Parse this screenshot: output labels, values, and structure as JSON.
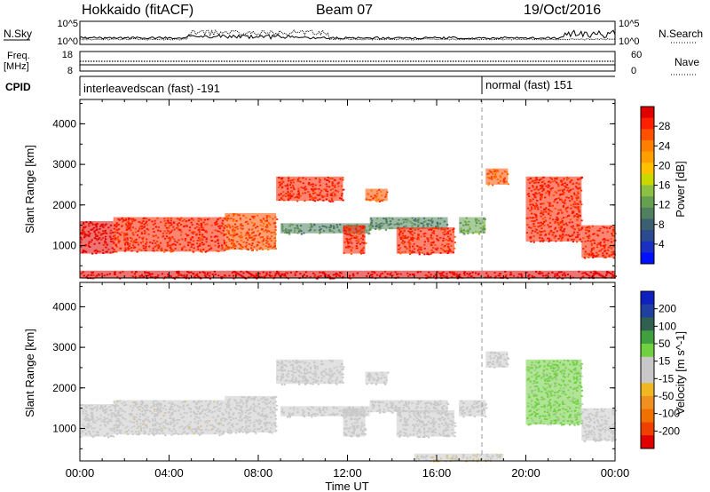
{
  "header": {
    "station": "Hokkaido (fitACF)",
    "beam": "Beam 07",
    "date": "19/Oct/2016"
  },
  "top_panels": {
    "nsky_label": "N.Sky",
    "nsky_ticks": [
      "10^5",
      "10^0"
    ],
    "nsearch_label": "N.Search",
    "nsearch_ticks": [
      "10^5",
      "10^0"
    ],
    "freq_label": "Freq.",
    "freq_unit": "[MHz]",
    "freq_ticks": [
      "18",
      "8"
    ],
    "nave_label": "Nave",
    "nave_ticks": [
      "60",
      "0"
    ],
    "cpid_label": "CPID",
    "cpid_modes": [
      {
        "text": "interleavedscan (fast) -191",
        "start_hour": 0
      },
      {
        "text": "normal (fast) 151",
        "start_hour": 18
      }
    ]
  },
  "colorbars": {
    "power": {
      "label": "Power [dB]",
      "ticks": [
        "28",
        "24",
        "20",
        "16",
        "12",
        "8",
        "4"
      ],
      "colors": [
        "#e00000",
        "#ff2000",
        "#ff5000",
        "#ff8000",
        "#ffa000",
        "#ffc000",
        "#c8d800",
        "#8cc040",
        "#64a050",
        "#508060",
        "#3c6070",
        "#2c4a90",
        "#1a30c0",
        "#0010ff"
      ]
    },
    "velocity": {
      "label": "Velocity [m s^-1]",
      "ticks": [
        "200",
        "100",
        "50",
        "15",
        "-15",
        "-50",
        "-100",
        "-200"
      ],
      "colors": [
        "#1020c0",
        "#2040a0",
        "#306050",
        "#40a040",
        "#70d040",
        "#c8c8c8",
        "#c8c8c8",
        "#f0b820",
        "#f09020",
        "#f07000",
        "#f04000",
        "#e00000"
      ]
    }
  },
  "chart_data": [
    {
      "type": "heatmap",
      "title": "Power",
      "ylabel": "Slant Range [km]",
      "y_ticks": [
        "4000",
        "3000",
        "2000",
        "1000"
      ],
      "ylim": [
        200,
        4600
      ],
      "xlim": [
        0,
        24
      ],
      "regions": [
        {
          "x0": 0.0,
          "x1": 1.5,
          "y0": 800,
          "y1": 1600,
          "value": 28
        },
        {
          "x0": 1.5,
          "x1": 6.5,
          "y0": 850,
          "y1": 1700,
          "value": 26
        },
        {
          "x0": 6.5,
          "x1": 8.8,
          "y0": 900,
          "y1": 1800,
          "value": 25
        },
        {
          "x0": 8.8,
          "x1": 11.8,
          "y0": 2100,
          "y1": 2700,
          "value": 26
        },
        {
          "x0": 9.0,
          "x1": 13.0,
          "y0": 1300,
          "y1": 1550,
          "value": 12
        },
        {
          "x0": 11.8,
          "x1": 12.8,
          "y0": 800,
          "y1": 1500,
          "value": 26
        },
        {
          "x0": 12.8,
          "x1": 13.8,
          "y0": 2100,
          "y1": 2400,
          "value": 24
        },
        {
          "x0": 13.0,
          "x1": 16.5,
          "y0": 1400,
          "y1": 1700,
          "value": 12
        },
        {
          "x0": 14.2,
          "x1": 16.8,
          "y0": 800,
          "y1": 1450,
          "value": 26
        },
        {
          "x0": 17.0,
          "x1": 18.2,
          "y0": 1300,
          "y1": 1700,
          "value": 14
        },
        {
          "x0": 18.2,
          "x1": 19.2,
          "y0": 2500,
          "y1": 2900,
          "value": 24
        },
        {
          "x0": 20.0,
          "x1": 22.5,
          "y0": 1100,
          "y1": 2700,
          "value": 26
        },
        {
          "x0": 22.5,
          "x1": 24.0,
          "y0": 700,
          "y1": 1500,
          "value": 26
        },
        {
          "x0": 0.0,
          "x1": 24.0,
          "y0": 200,
          "y1": 380,
          "value": 28
        }
      ]
    },
    {
      "type": "heatmap",
      "title": "Velocity",
      "ylabel": "Slant Range [km]",
      "xlabel": "Time UT",
      "x_ticks": [
        "00:00",
        "04:00",
        "08:00",
        "12:00",
        "16:00",
        "20:00",
        "00:00"
      ],
      "y_ticks": [
        "4000",
        "3000",
        "2000",
        "1000"
      ],
      "ylim": [
        200,
        4600
      ],
      "xlim": [
        0,
        24
      ],
      "regions": [
        {
          "x0": 0.0,
          "x1": 1.5,
          "y0": 800,
          "y1": 1600,
          "value": 0
        },
        {
          "x0": 1.5,
          "x1": 6.5,
          "y0": 850,
          "y1": 1700,
          "value": -30
        },
        {
          "x0": 6.5,
          "x1": 8.8,
          "y0": 900,
          "y1": 1800,
          "value": -20
        },
        {
          "x0": 8.8,
          "x1": 11.8,
          "y0": 2100,
          "y1": 2700,
          "value": 0
        },
        {
          "x0": 9.0,
          "x1": 13.0,
          "y0": 1300,
          "y1": 1550,
          "value": 0
        },
        {
          "x0": 11.8,
          "x1": 12.8,
          "y0": 800,
          "y1": 1500,
          "value": 0
        },
        {
          "x0": 12.8,
          "x1": 13.8,
          "y0": 2100,
          "y1": 2400,
          "value": 0
        },
        {
          "x0": 13.0,
          "x1": 16.5,
          "y0": 1400,
          "y1": 1700,
          "value": 0
        },
        {
          "x0": 14.2,
          "x1": 16.8,
          "y0": 800,
          "y1": 1450,
          "value": 0
        },
        {
          "x0": 17.0,
          "x1": 18.2,
          "y0": 1300,
          "y1": 1700,
          "value": 0
        },
        {
          "x0": 18.2,
          "x1": 19.2,
          "y0": 2500,
          "y1": 2900,
          "value": 0
        },
        {
          "x0": 20.0,
          "x1": 22.5,
          "y0": 1100,
          "y1": 2700,
          "value": 30
        },
        {
          "x0": 22.5,
          "x1": 24.0,
          "y0": 700,
          "y1": 1500,
          "value": 0
        },
        {
          "x0": 15.0,
          "x1": 19.0,
          "y0": 200,
          "y1": 380,
          "value": -40
        }
      ]
    }
  ]
}
